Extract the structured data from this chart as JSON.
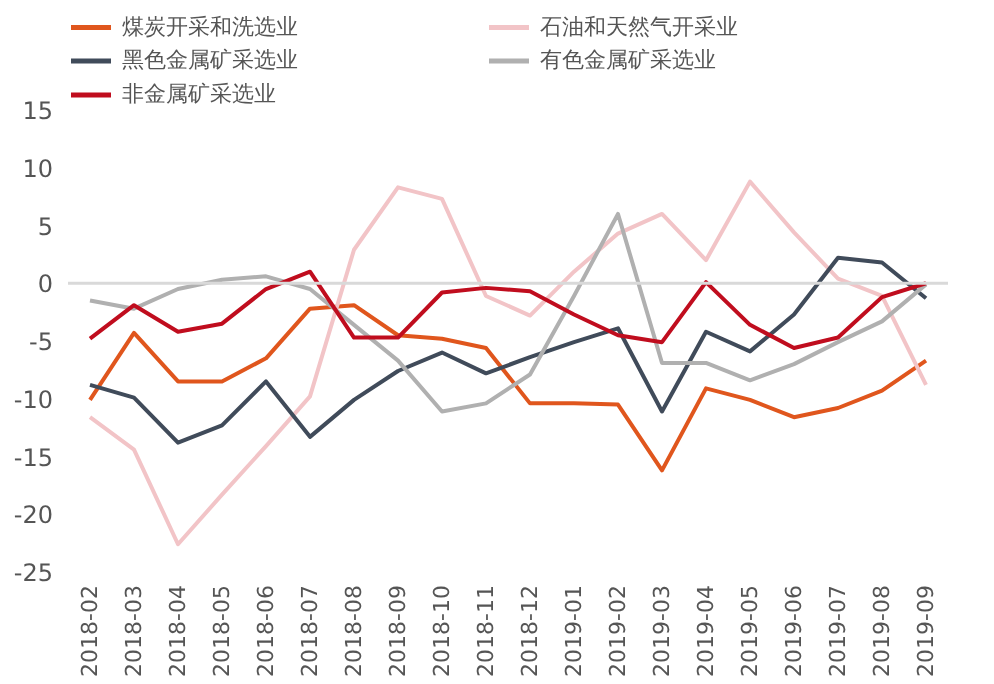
{
  "chart_data": {
    "type": "line",
    "categories": [
      "2018-02",
      "2018-03",
      "2018-04",
      "2018-05",
      "2018-06",
      "2018-07",
      "2018-08",
      "2018-09",
      "2018-10",
      "2018-11",
      "2018-12",
      "2019-01",
      "2019-02",
      "2019-03",
      "2019-04",
      "2019-05",
      "2019-06",
      "2019-07",
      "2019-08",
      "2019-09"
    ],
    "series": [
      {
        "name": "煤炭开采和洗选业",
        "color": "#e0561d",
        "values": [
          -10.1,
          -4.3,
          -8.5,
          -8.5,
          -6.5,
          -2.2,
          -1.9,
          -4.5,
          -4.8,
          -5.6,
          -10.4,
          -10.4,
          -10.5,
          -16.2,
          -9.1,
          -10.1,
          -11.6,
          -10.8,
          -9.3,
          -6.7
        ]
      },
      {
        "name": "石油和天然气开采业",
        "color": "#f2c4c7",
        "values": [
          -11.6,
          -14.4,
          -22.6,
          -18.3,
          -14.1,
          -9.8,
          2.9,
          8.3,
          7.3,
          -1.1,
          -2.8,
          1.0,
          4.3,
          6.0,
          2.0,
          8.8,
          4.4,
          0.4,
          -1.1,
          -8.8
        ]
      },
      {
        "name": "黑色金属矿采选业",
        "color": "#404b5a",
        "values": [
          -8.8,
          -9.9,
          -13.8,
          -12.3,
          -8.5,
          -13.3,
          -10.1,
          -7.6,
          -6.0,
          -7.8,
          -6.4,
          -5.1,
          -3.9,
          -11.1,
          -4.2,
          -5.9,
          -2.7,
          2.2,
          1.8,
          -1.3
        ]
      },
      {
        "name": "有色金属矿采选业",
        "color": "#b0b0b0",
        "values": [
          -1.5,
          -2.2,
          -0.5,
          0.3,
          0.6,
          -0.5,
          -3.6,
          -6.7,
          -11.1,
          -10.4,
          -7.9,
          -1.1,
          6.0,
          -6.9,
          -6.9,
          -8.4,
          -7.0,
          -5.1,
          -3.3,
          -0.1
        ]
      },
      {
        "name": "非金属矿采选业",
        "color": "#c00d1e",
        "values": [
          -4.8,
          -1.9,
          -4.2,
          -3.5,
          -0.5,
          1.0,
          -4.7,
          -4.7,
          -0.8,
          -0.4,
          -0.7,
          -2.7,
          -4.5,
          -5.1,
          0.1,
          -3.6,
          -5.6,
          -4.7,
          -1.2,
          0.0
        ]
      }
    ],
    "ylim": [
      -25,
      15
    ],
    "yticks": [
      -25,
      -20,
      -15,
      -10,
      -5,
      0,
      5,
      10,
      15
    ],
    "ref_lines": [
      {
        "axis": "y",
        "value": 0,
        "color": "#d9d9d9"
      }
    ],
    "legend": "top",
    "grid": false,
    "marker": "none",
    "line_style": "solid"
  }
}
